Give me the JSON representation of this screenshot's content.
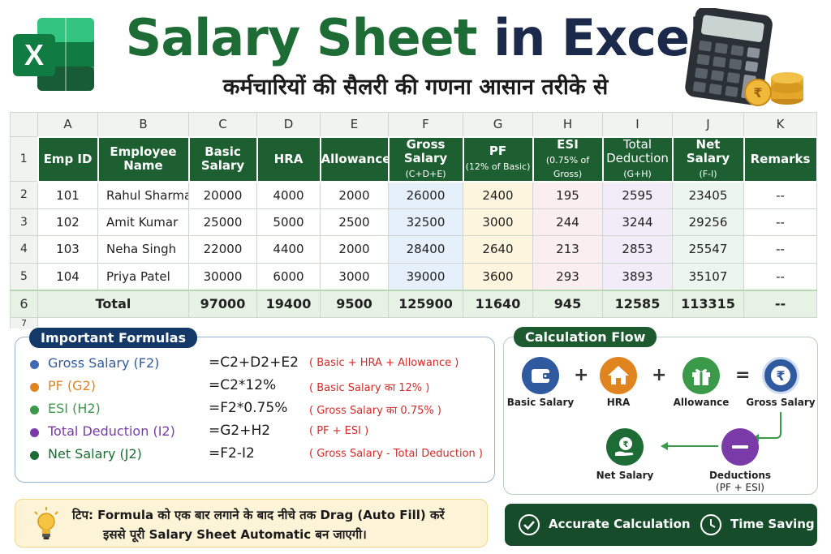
{
  "header": {
    "title_part1": "Salary Sheet",
    "title_part2": "in Excel",
    "subtitle": "कर्मचारियों की सैलरी की गणना आसान तरीके से",
    "logo_letter": "X"
  },
  "colors": {
    "excel_green": "#1e5f31",
    "navy": "#143968",
    "red_note": "#d42a2a",
    "gross_blue": "#2f5aa0",
    "pf_orange": "#e08420",
    "esi_green": "#3b9a4a",
    "deduction_purple": "#7a3aa8",
    "net_green": "#1d6b35"
  },
  "sheet": {
    "columns": [
      "A",
      "B",
      "C",
      "D",
      "E",
      "F",
      "G",
      "H",
      "I",
      "J",
      "K"
    ],
    "row_numbers": [
      "1",
      "2",
      "3",
      "4",
      "5",
      "6",
      "7"
    ],
    "headers": [
      {
        "main": "Emp ID",
        "sub": ""
      },
      {
        "main": "Employee Name",
        "sub": ""
      },
      {
        "main": "Basic Salary",
        "sub": ""
      },
      {
        "main": "HRA",
        "sub": ""
      },
      {
        "main": "Allowance",
        "sub": ""
      },
      {
        "main": "Gross Salary",
        "sub": "(C+D+E)"
      },
      {
        "main": "PF",
        "sub": "(12% of Basic)"
      },
      {
        "main": "ESI",
        "sub": "(0.75% of Gross)"
      },
      {
        "main": "Total Deduction",
        "sub": "(G+H)"
      },
      {
        "main": "Net Salary",
        "sub": "(F-I)"
      },
      {
        "main": "Remarks",
        "sub": ""
      }
    ],
    "rows": [
      [
        "101",
        "Rahul Sharma",
        "20000",
        "4000",
        "2000",
        "26000",
        "2400",
        "195",
        "2595",
        "23405",
        "--"
      ],
      [
        "102",
        "Amit Kumar",
        "25000",
        "5000",
        "2500",
        "32500",
        "3000",
        "244",
        "3244",
        "29256",
        "--"
      ],
      [
        "103",
        "Neha Singh",
        "22000",
        "4400",
        "2000",
        "28400",
        "2640",
        "213",
        "2853",
        "25547",
        "--"
      ],
      [
        "104",
        "Priya Patel",
        "30000",
        "6000",
        "3000",
        "39000",
        "3600",
        "293",
        "3893",
        "35107",
        "--"
      ]
    ],
    "total": {
      "label": "Total",
      "values": [
        "97000",
        "19400",
        "9500",
        "125900",
        "11640",
        "945",
        "12585",
        "113315",
        "--"
      ]
    }
  },
  "formulas": {
    "title": "Important Formulas",
    "items": [
      {
        "label": "Gross Salary (F2)",
        "formula": "=C2+D2+E2",
        "note": "( Basic + HRA + Allowance )"
      },
      {
        "label": "PF (G2)",
        "formula": "=C2*12%",
        "note": "( Basic Salary का 12% )"
      },
      {
        "label": "ESI (H2)",
        "formula": "=F2*0.75%",
        "note": "( Gross Salary का 0.75% )"
      },
      {
        "label": "Total Deduction (I2)",
        "formula": "=G2+H2",
        "note": "( PF + ESI )"
      },
      {
        "label": "Net Salary (J2)",
        "formula": "=F2-I2",
        "note": "( Gross Salary - Total Deduction )"
      }
    ]
  },
  "flow": {
    "title": "Calculation Flow",
    "basic": "Basic Salary",
    "hra": "HRA",
    "allowance": "Allowance",
    "gross": "Gross Salary",
    "deductions": "Deductions",
    "deductions_sub": "(PF + ESI)",
    "net": "Net Salary",
    "plus": "+",
    "equals": "=",
    "rupee": "₹",
    "minus": "−"
  },
  "tip": {
    "line1": "टिप: Formula को एक बार लगाने के बाद नीचे तक Drag (Auto Fill) करें",
    "line2": "इससे पूरी Salary Sheet Automatic बन जाएगी।"
  },
  "badges": {
    "accurate": "Accurate Calculation",
    "saving": "Time Saving"
  },
  "icons": {
    "logo": "excel-logo-icon",
    "calculator": "calculator-icon",
    "coins": "coins-icon",
    "bulb": "lightbulb-icon",
    "wallet": "wallet-icon",
    "house": "house-icon",
    "gift": "gift-icon",
    "rupee": "rupee-icon",
    "hand": "hand-money-icon",
    "check": "check-circle-icon",
    "clock": "clock-icon"
  }
}
